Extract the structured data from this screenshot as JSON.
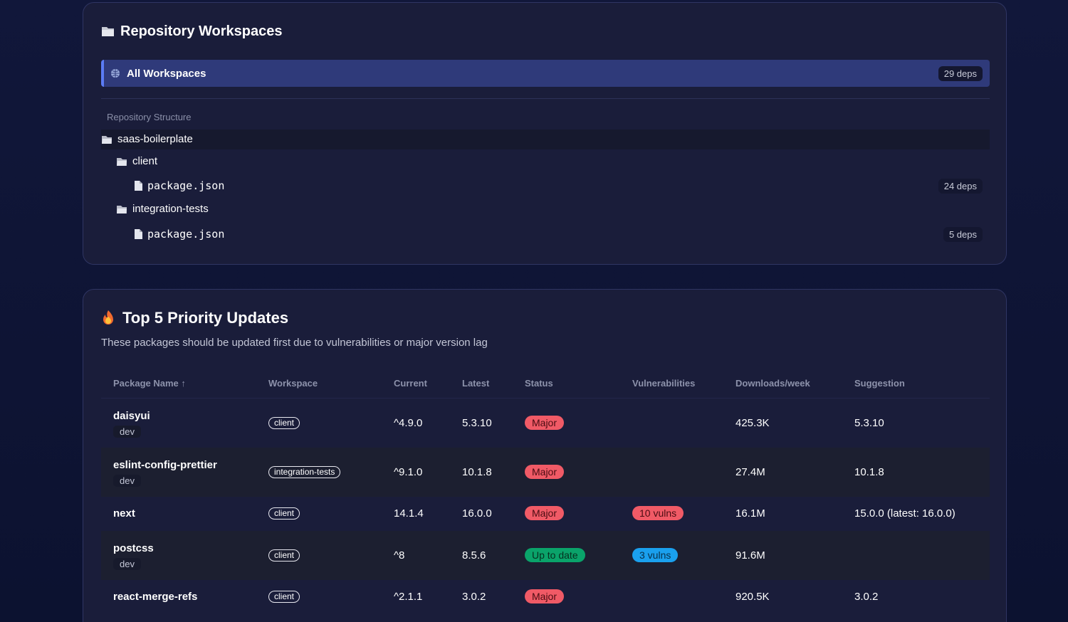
{
  "workspaces": {
    "title": "Repository Workspaces",
    "all": {
      "label": "All Workspaces",
      "deps": "29 deps"
    },
    "structure_label": "Repository Structure",
    "tree": [
      {
        "label": "saas-boilerplate",
        "kind": "folder",
        "level": 0
      },
      {
        "label": "client",
        "kind": "folder",
        "level": 1
      },
      {
        "label": "package.json",
        "kind": "file",
        "level": 2,
        "deps": "24 deps"
      },
      {
        "label": "integration-tests",
        "kind": "folder",
        "level": 1
      },
      {
        "label": "package.json",
        "kind": "file",
        "level": 2,
        "deps": "5 deps"
      }
    ]
  },
  "priority": {
    "title": "Top 5 Priority Updates",
    "subtitle": "These packages should be updated first due to vulnerabilities or major version lag",
    "columns": [
      "Package Name ↑",
      "Workspace",
      "Current",
      "Latest",
      "Status",
      "Vulnerabilities",
      "Downloads/week",
      "Suggestion"
    ],
    "rows": [
      {
        "name": "daisyui",
        "type": "dev",
        "workspace": "client",
        "current": "^4.9.0",
        "latest": "5.3.10",
        "status": "Major",
        "downloads": "425.3K",
        "suggestion": "5.3.10"
      },
      {
        "name": "eslint-config-prettier",
        "type": "dev",
        "workspace": "integration-tests",
        "current": "^9.1.0",
        "latest": "10.1.8",
        "status": "Major",
        "downloads": "27.4M",
        "suggestion": "10.1.8"
      },
      {
        "name": "next",
        "workspace": "client",
        "current": "14.1.4",
        "latest": "16.0.0",
        "status": "Major",
        "vulns": "10 vulns",
        "downloads": "16.1M",
        "suggestion": "15.0.0 (latest: 16.0.0)"
      },
      {
        "name": "postcss",
        "type": "dev",
        "workspace": "client",
        "current": "^8",
        "latest": "8.5.6",
        "status": "Up to date",
        "vulns": "3 vulns",
        "downloads": "91.6M"
      },
      {
        "name": "react-merge-refs",
        "workspace": "client",
        "current": "^2.1.1",
        "latest": "3.0.2",
        "status": "Major",
        "downloads": "920.5K",
        "suggestion": "3.0.2"
      }
    ]
  }
}
